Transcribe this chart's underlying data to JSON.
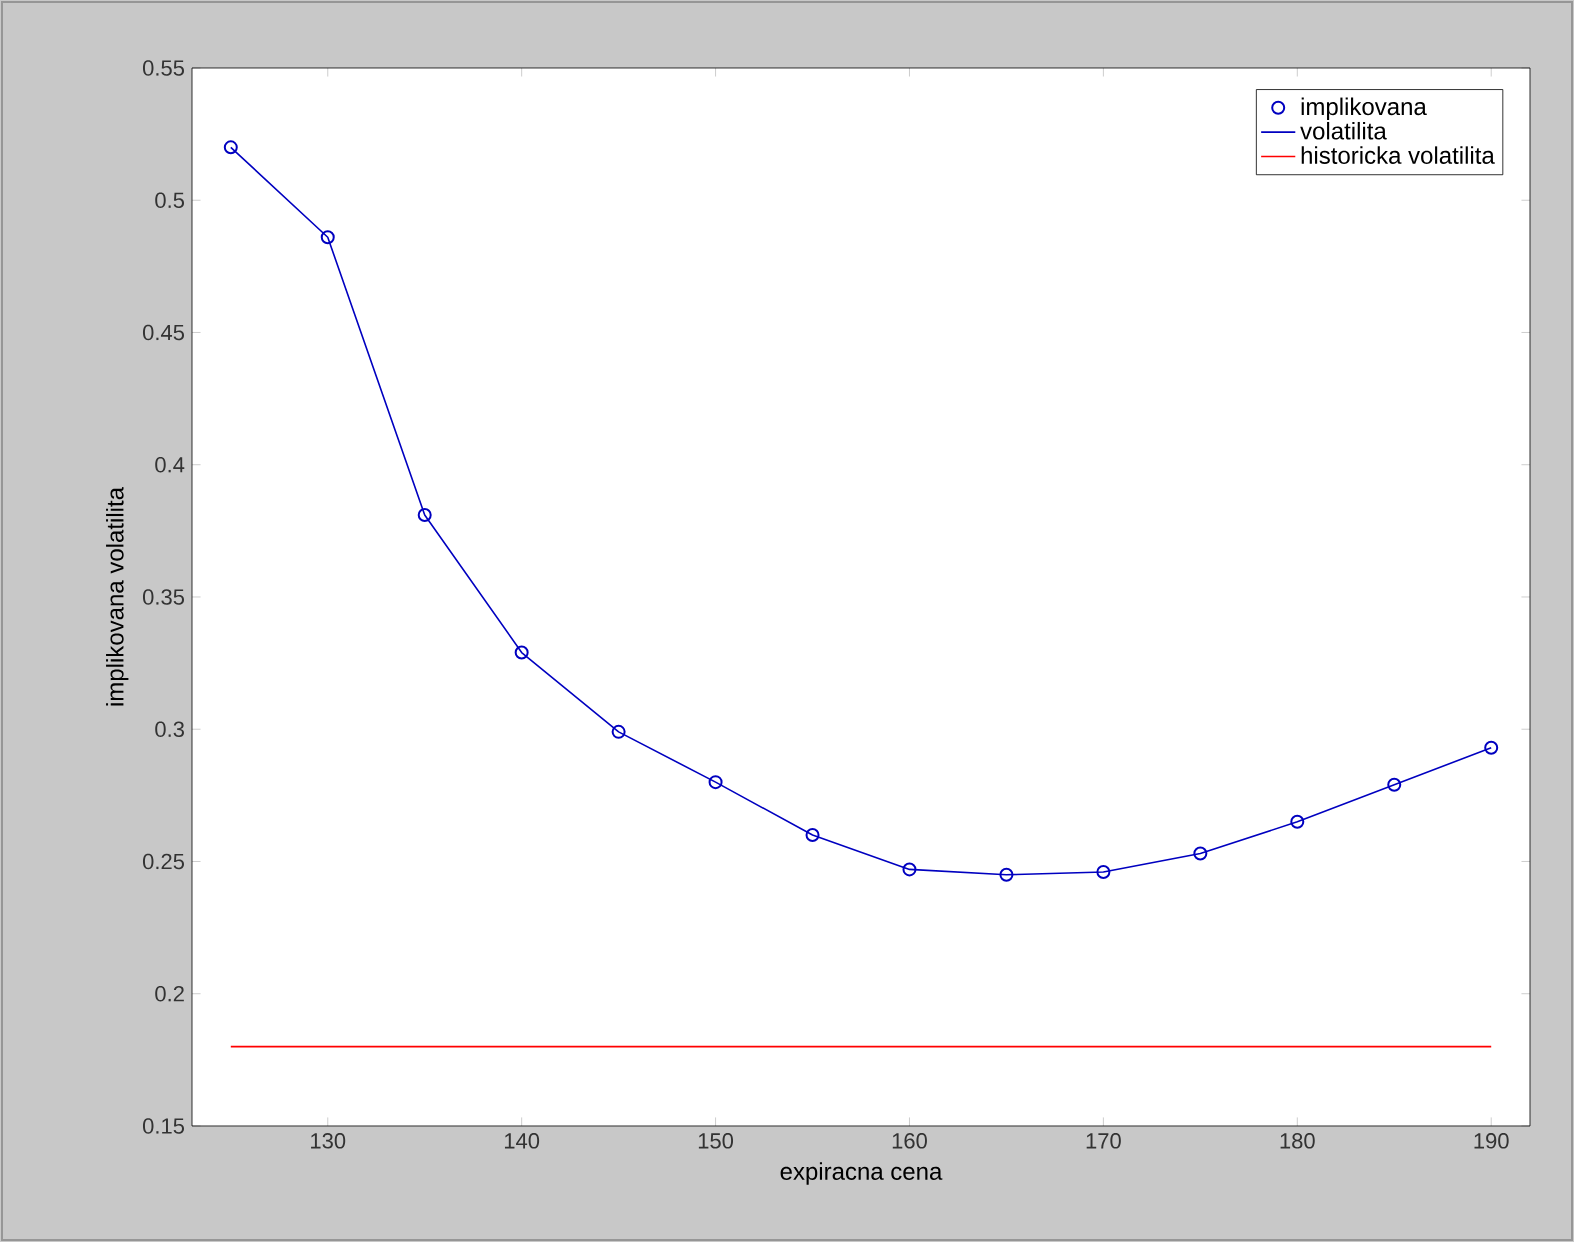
{
  "chart_data": {
    "type": "line",
    "xlabel": "expiracna cena",
    "ylabel": "implikovana volatilita",
    "x": [
      125,
      130,
      135,
      140,
      145,
      150,
      155,
      160,
      165,
      170,
      175,
      180,
      185,
      190
    ],
    "series": [
      {
        "name": "implikovana",
        "type": "scatter",
        "marker": "circle",
        "color": "#0000c0",
        "values": [
          0.52,
          0.486,
          0.381,
          0.329,
          0.299,
          0.28,
          0.26,
          0.247,
          0.245,
          0.246,
          0.253,
          0.265,
          0.279,
          0.293
        ]
      },
      {
        "name": "volatilita",
        "line_style": "solid",
        "color": "#0000c0",
        "values": [
          0.52,
          0.486,
          0.381,
          0.329,
          0.299,
          0.28,
          0.26,
          0.247,
          0.245,
          0.246,
          0.253,
          0.265,
          0.279,
          0.293
        ]
      },
      {
        "name": "historicka volatilita",
        "line_style": "solid",
        "color": "#ff0000",
        "x": [
          125,
          190
        ],
        "values": [
          0.18,
          0.18
        ]
      }
    ],
    "xlim": [
      123,
      192
    ],
    "ylim": [
      0.15,
      0.55
    ],
    "xticks": [
      130,
      140,
      150,
      160,
      170,
      180,
      190
    ],
    "yticks": [
      0.15,
      0.2,
      0.25,
      0.3,
      0.35,
      0.4,
      0.45,
      0.5,
      0.55
    ],
    "grid": false,
    "legend": "top right"
  }
}
